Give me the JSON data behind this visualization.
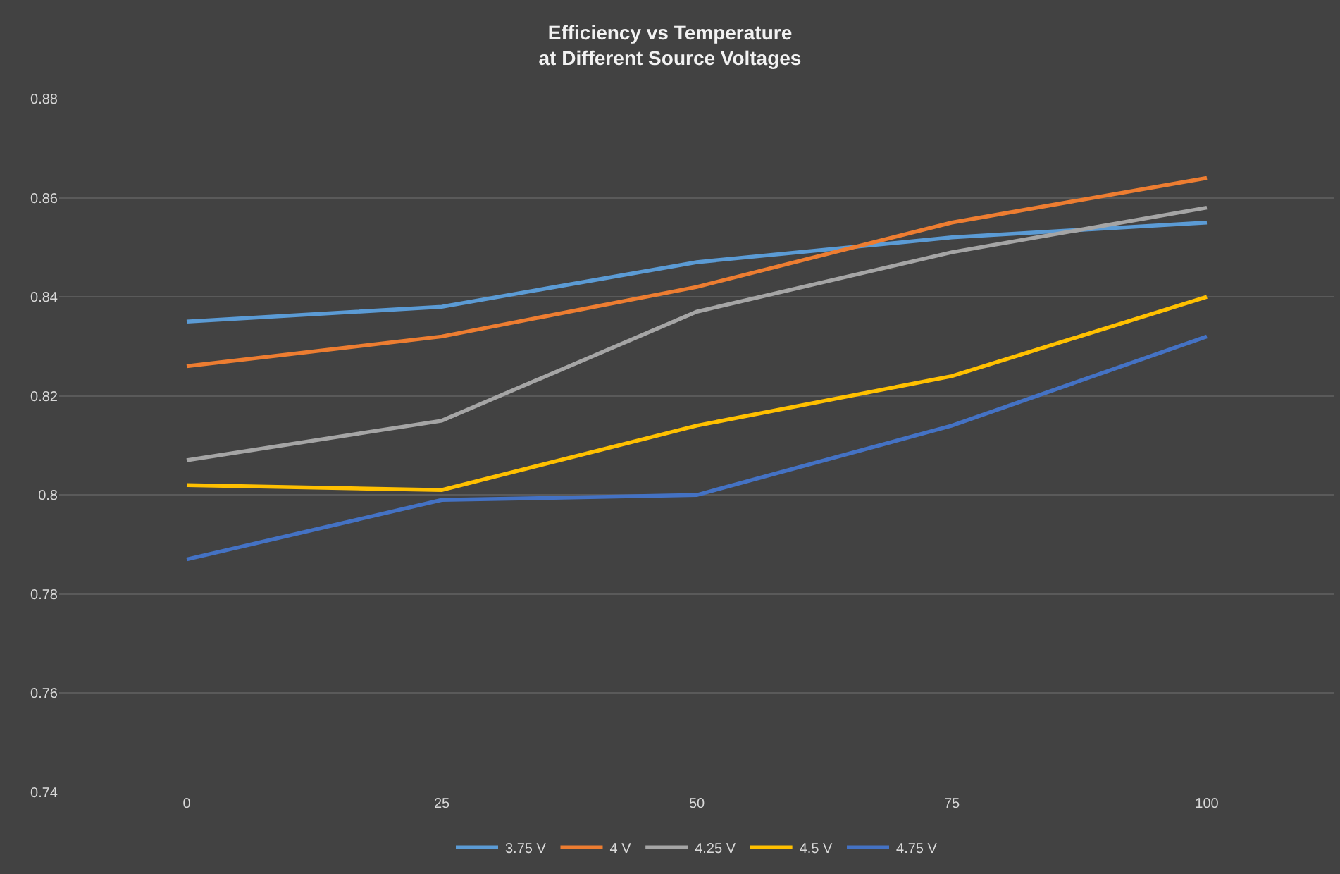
{
  "chart_data": {
    "type": "line",
    "title": "Efficiency vs Temperature\nat Different Source Voltages",
    "categories": [
      "0",
      "25",
      "50",
      "75",
      "100"
    ],
    "series": [
      {
        "name": "3.75 V",
        "color": "#5b9bd5",
        "values": [
          0.835,
          0.838,
          0.847,
          0.852,
          0.855
        ]
      },
      {
        "name": "4 V",
        "color": "#ed7d31",
        "values": [
          0.826,
          0.832,
          0.842,
          0.855,
          0.864
        ]
      },
      {
        "name": "4.25 V",
        "color": "#a5a5a5",
        "values": [
          0.807,
          0.815,
          0.837,
          0.849,
          0.858
        ]
      },
      {
        "name": "4.5 V",
        "color": "#ffc000",
        "values": [
          0.802,
          0.801,
          0.814,
          0.824,
          0.84
        ]
      },
      {
        "name": "4.75 V",
        "color": "#4472c4",
        "values": [
          0.787,
          0.799,
          0.8,
          0.814,
          0.832
        ]
      }
    ],
    "ylim": [
      0.74,
      0.88
    ],
    "yticks": [
      0.74,
      0.76,
      0.78,
      0.8,
      0.82,
      0.84,
      0.86,
      0.88
    ],
    "grid": "y",
    "legend": "bottom"
  }
}
